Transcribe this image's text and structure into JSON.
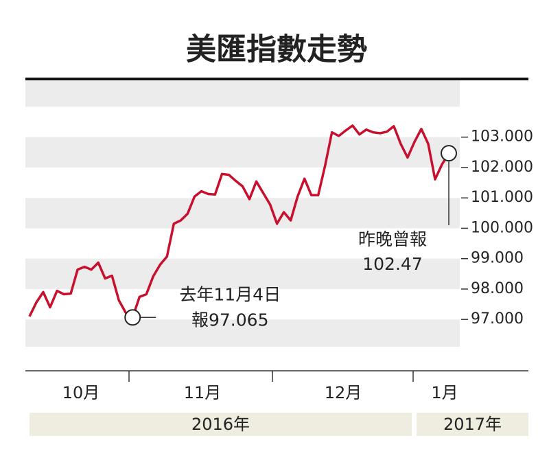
{
  "chart_data": {
    "type": "line",
    "title": "美匯指數走勢",
    "series": [
      {
        "color": "#c8102e",
        "values": [
          97.1,
          97.56,
          97.9,
          97.4,
          97.94,
          97.83,
          97.85,
          98.64,
          98.73,
          98.64,
          98.87,
          98.35,
          98.44,
          97.63,
          97.22,
          97.065,
          97.74,
          97.83,
          98.42,
          98.8,
          99.07,
          100.15,
          100.26,
          100.48,
          101.04,
          101.22,
          101.13,
          101.11,
          101.79,
          101.76,
          101.56,
          101.38,
          100.96,
          101.54,
          101.16,
          100.78,
          100.15,
          100.53,
          100.26,
          101.04,
          101.63,
          101.09,
          101.09,
          102.06,
          103.16,
          103.04,
          103.22,
          103.38,
          103.09,
          103.25,
          103.16,
          103.13,
          103.18,
          103.36,
          102.78,
          102.33,
          102.84,
          103.27,
          102.78,
          101.61,
          102.1,
          102.47
        ]
      }
    ],
    "ylim": [
      96.1,
      104.87
    ],
    "yticks": [
      {
        "value": 97,
        "label": "97.000"
      },
      {
        "value": 98,
        "label": "98.000"
      },
      {
        "value": 99,
        "label": "99.000"
      },
      {
        "value": 100,
        "label": "100.000"
      },
      {
        "value": 101,
        "label": "101.000"
      },
      {
        "value": 102,
        "label": "102.000"
      },
      {
        "value": 103,
        "label": "103.000"
      }
    ],
    "months": [
      "10月",
      "11月",
      "12月",
      "1月"
    ],
    "years": [
      "2016年",
      "2017年"
    ],
    "annotations": [
      {
        "lines": [
          "去年11月4日",
          "報97.065"
        ],
        "index": 15
      },
      {
        "lines": [
          "昨晚曾報",
          "102.47"
        ],
        "index": 61
      }
    ],
    "grid": "bands"
  }
}
